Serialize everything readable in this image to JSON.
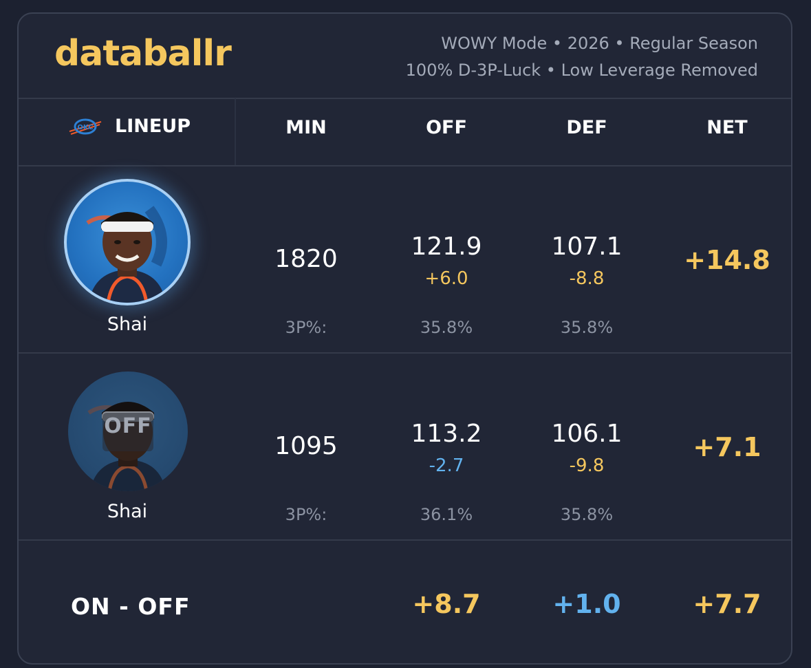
{
  "brand": "databallr",
  "subtitle": {
    "line1": "WOWY Mode • 2026 • Regular Season",
    "line2": "100% D-3P-Luck • Low Leverage Removed"
  },
  "columns": {
    "lineup": "LINEUP",
    "min": "MIN",
    "off": "OFF",
    "def": "DEF",
    "net": "NET"
  },
  "team_logo": "okc-thunder-logo",
  "rows": [
    {
      "player": "Shai",
      "status": "on",
      "min": "1820",
      "off": "121.9",
      "off_delta": "+6.0",
      "def": "107.1",
      "def_delta": "-8.8",
      "net": "+14.8",
      "three_label": "3P%:",
      "off_3p": "35.8%",
      "def_3p": "35.8%"
    },
    {
      "player": "Shai",
      "status": "off",
      "off_badge": "OFF",
      "min": "1095",
      "off": "113.2",
      "off_delta": "-2.7",
      "def": "106.1",
      "def_delta": "-9.8",
      "net": "+7.1",
      "three_label": "3P%:",
      "off_3p": "36.1%",
      "def_3p": "35.8%"
    }
  ],
  "on_off": {
    "label": "ON - OFF",
    "off": "+8.7",
    "def": "+1.0",
    "net": "+7.7"
  },
  "colors": {
    "accent_yellow": "#f5c75e",
    "accent_blue": "#62b2ee",
    "background": "#212636"
  }
}
